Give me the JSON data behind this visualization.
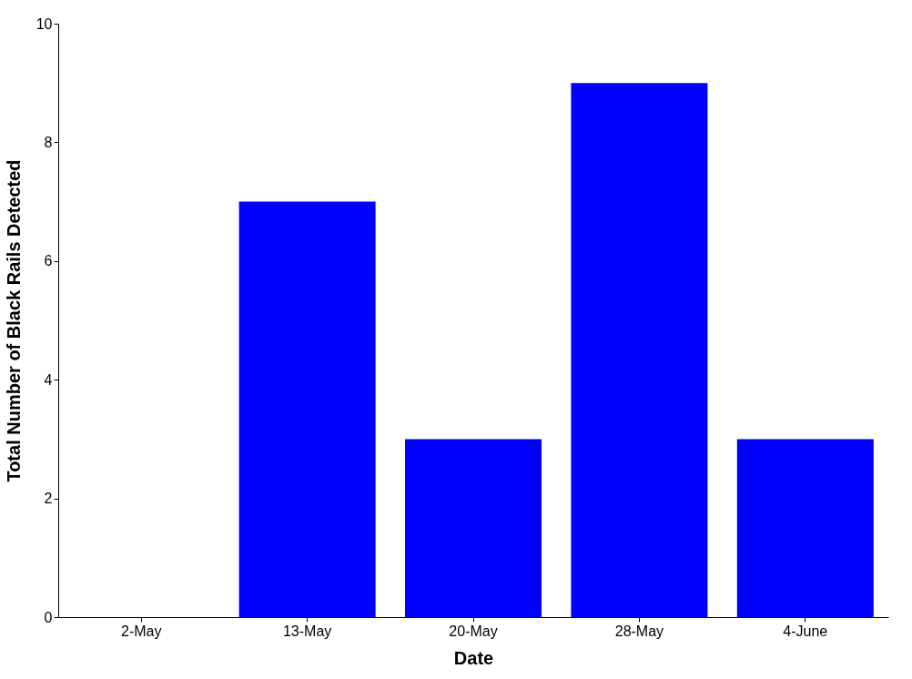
{
  "chart_data": {
    "type": "bar",
    "xlabel": "Date",
    "ylabel": "Total Number of Black Rails Detected",
    "categories": [
      "2-May",
      "13-May",
      "20-May",
      "28-May",
      "4-June"
    ],
    "values": [
      0,
      7,
      3,
      9,
      3
    ],
    "color": "#0000ff",
    "ylim": [
      0,
      10
    ],
    "yticks": [
      0,
      2,
      4,
      6,
      8,
      10
    ],
    "grid": false
  }
}
